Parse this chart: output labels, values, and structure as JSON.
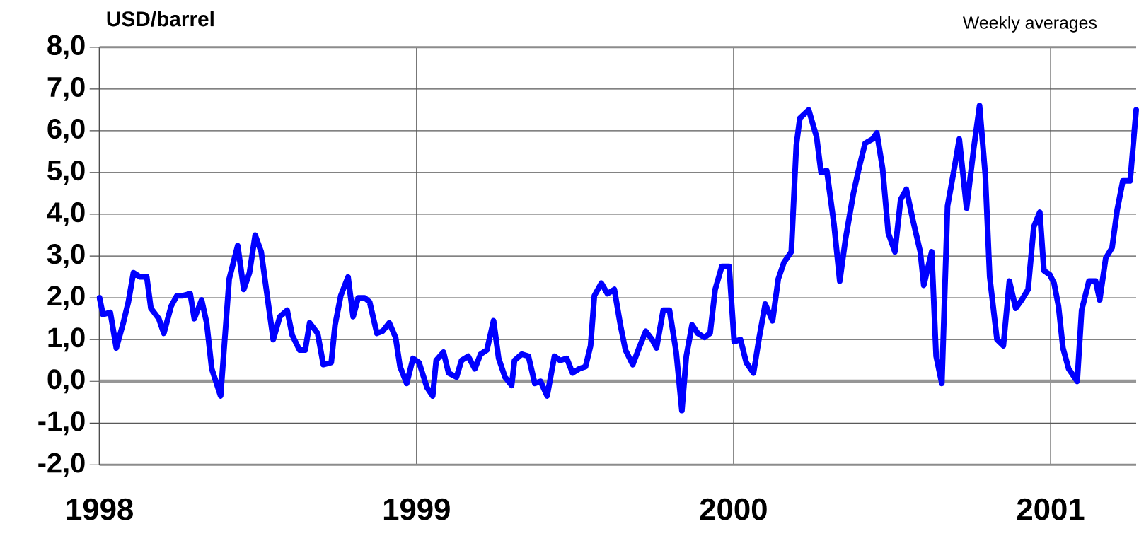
{
  "chart_data": {
    "type": "line",
    "ylabel": "USD/barrel",
    "annotations": [
      "Weekly averages"
    ],
    "x": [
      1998.0,
      1998.011,
      1998.034,
      1998.053,
      1998.075,
      1998.091,
      1998.107,
      1998.128,
      1998.149,
      1998.162,
      1998.187,
      1998.203,
      1998.226,
      1998.244,
      1998.263,
      1998.286,
      1998.299,
      1998.322,
      1998.338,
      1998.354,
      1998.382,
      1998.409,
      1998.436,
      1998.455,
      1998.473,
      1998.491,
      1998.51,
      1998.528,
      1998.548,
      1998.569,
      1998.592,
      1998.608,
      1998.631,
      1998.649,
      1998.663,
      1998.688,
      1998.706,
      1998.731,
      1998.743,
      1998.761,
      1998.784,
      1998.8,
      1998.816,
      1998.836,
      1998.852,
      1998.875,
      1998.893,
      1998.914,
      1998.934,
      1998.948,
      1998.969,
      1998.989,
      1999.008,
      1999.033,
      1999.051,
      1999.062,
      1999.085,
      1999.101,
      1999.126,
      1999.142,
      1999.163,
      1999.184,
      1999.202,
      1999.222,
      1999.243,
      1999.259,
      1999.279,
      1999.3,
      1999.309,
      1999.332,
      1999.353,
      1999.373,
      1999.391,
      1999.412,
      1999.435,
      1999.453,
      1999.474,
      1999.492,
      1999.513,
      1999.533,
      1999.549,
      1999.561,
      1999.583,
      1999.602,
      1999.624,
      1999.643,
      1999.659,
      1999.682,
      1999.702,
      1999.723,
      1999.743,
      1999.757,
      1999.778,
      1999.798,
      1999.819,
      1999.837,
      1999.851,
      1999.869,
      1999.887,
      1999.908,
      1999.926,
      1999.942,
      1999.963,
      1999.986,
      2000.002,
      2000.022,
      2000.04,
      2000.063,
      2000.081,
      2000.1,
      2000.123,
      2000.141,
      2000.159,
      2000.182,
      2000.198,
      2000.209,
      2000.237,
      2000.262,
      2000.276,
      2000.294,
      2000.317,
      2000.335,
      2000.353,
      2000.378,
      2000.397,
      2000.415,
      2000.438,
      2000.452,
      2000.47,
      2000.488,
      2000.509,
      2000.527,
      2000.545,
      2000.566,
      2000.589,
      2000.6,
      2000.625,
      2000.639,
      2000.657,
      2000.675,
      2000.694,
      2000.712,
      2000.735,
      2000.758,
      2000.776,
      2000.794,
      2000.808,
      2000.831,
      2000.851,
      2000.87,
      2000.89,
      2000.909,
      2000.929,
      2000.947,
      2000.966,
      2000.979,
      2000.998,
      2001.011,
      2001.025,
      2001.039,
      2001.057,
      2001.084,
      2001.098,
      2001.121,
      2001.142,
      2001.155,
      2001.174,
      2001.194,
      2001.21,
      2001.228,
      2001.251,
      2001.27
    ],
    "series": [
      {
        "color": "#0000ff",
        "values": [
          2.0,
          1.6,
          1.65,
          0.8,
          1.4,
          1.9,
          2.6,
          2.5,
          2.5,
          1.75,
          1.5,
          1.15,
          1.8,
          2.05,
          2.05,
          2.1,
          1.5,
          1.95,
          1.4,
          0.3,
          -0.35,
          2.45,
          3.25,
          2.2,
          2.6,
          3.5,
          3.1,
          2.1,
          1.0,
          1.55,
          1.7,
          1.1,
          0.75,
          0.75,
          1.4,
          1.15,
          0.4,
          0.45,
          1.35,
          2.05,
          2.5,
          1.55,
          2.0,
          2.0,
          1.9,
          1.15,
          1.2,
          1.4,
          1.05,
          0.35,
          -0.05,
          0.55,
          0.45,
          -0.15,
          -0.35,
          0.5,
          0.7,
          0.2,
          0.1,
          0.5,
          0.6,
          0.3,
          0.65,
          0.75,
          1.45,
          0.55,
          0.1,
          -0.1,
          0.5,
          0.65,
          0.6,
          -0.05,
          0.0,
          -0.35,
          0.6,
          0.5,
          0.55,
          0.2,
          0.3,
          0.35,
          0.85,
          2.05,
          2.35,
          2.1,
          2.2,
          1.35,
          0.75,
          0.4,
          0.8,
          1.2,
          1.0,
          0.8,
          1.7,
          1.7,
          0.7,
          -0.7,
          0.6,
          1.35,
          1.15,
          1.05,
          1.15,
          2.2,
          2.75,
          2.75,
          0.95,
          1.0,
          0.45,
          0.2,
          1.05,
          1.85,
          1.45,
          2.45,
          2.85,
          3.1,
          5.65,
          6.3,
          6.5,
          5.85,
          5.0,
          5.05,
          3.75,
          2.4,
          3.4,
          4.5,
          5.15,
          5.7,
          5.8,
          5.95,
          5.1,
          3.55,
          3.1,
          4.35,
          4.6,
          3.85,
          3.1,
          2.3,
          3.1,
          0.6,
          -0.05,
          4.2,
          5.0,
          5.8,
          4.15,
          5.6,
          6.6,
          4.95,
          2.5,
          1.0,
          0.85,
          2.4,
          1.75,
          1.95,
          2.2,
          3.7,
          4.05,
          2.65,
          2.55,
          2.35,
          1.8,
          0.8,
          0.3,
          0.0,
          1.7,
          2.4,
          2.4,
          1.95,
          2.95,
          3.2,
          4.1,
          4.8,
          4.8,
          6.5
        ]
      }
    ],
    "xlim": [
      1998,
      2001.27
    ],
    "xticks": [
      1998,
      1999,
      2000,
      2001
    ],
    "ylim": [
      -2,
      8
    ],
    "yticks": [
      {
        "value": -2,
        "label": "-2,0"
      },
      {
        "value": -1,
        "label": "-1,0"
      },
      {
        "value": 0,
        "label": "0,0"
      },
      {
        "value": 1,
        "label": "1,0"
      },
      {
        "value": 2,
        "label": "2,0"
      },
      {
        "value": 3,
        "label": "3,0"
      },
      {
        "value": 4,
        "label": "4,0"
      },
      {
        "value": 5,
        "label": "5,0"
      },
      {
        "value": 6,
        "label": "6,0"
      },
      {
        "value": 7,
        "label": "7,0"
      },
      {
        "value": 8,
        "label": "8,0"
      }
    ],
    "ref_lines": [
      {
        "axis": "y",
        "value": 0,
        "color": "#969696"
      }
    ],
    "grid": true,
    "marker": "none",
    "line_style": "solid"
  }
}
